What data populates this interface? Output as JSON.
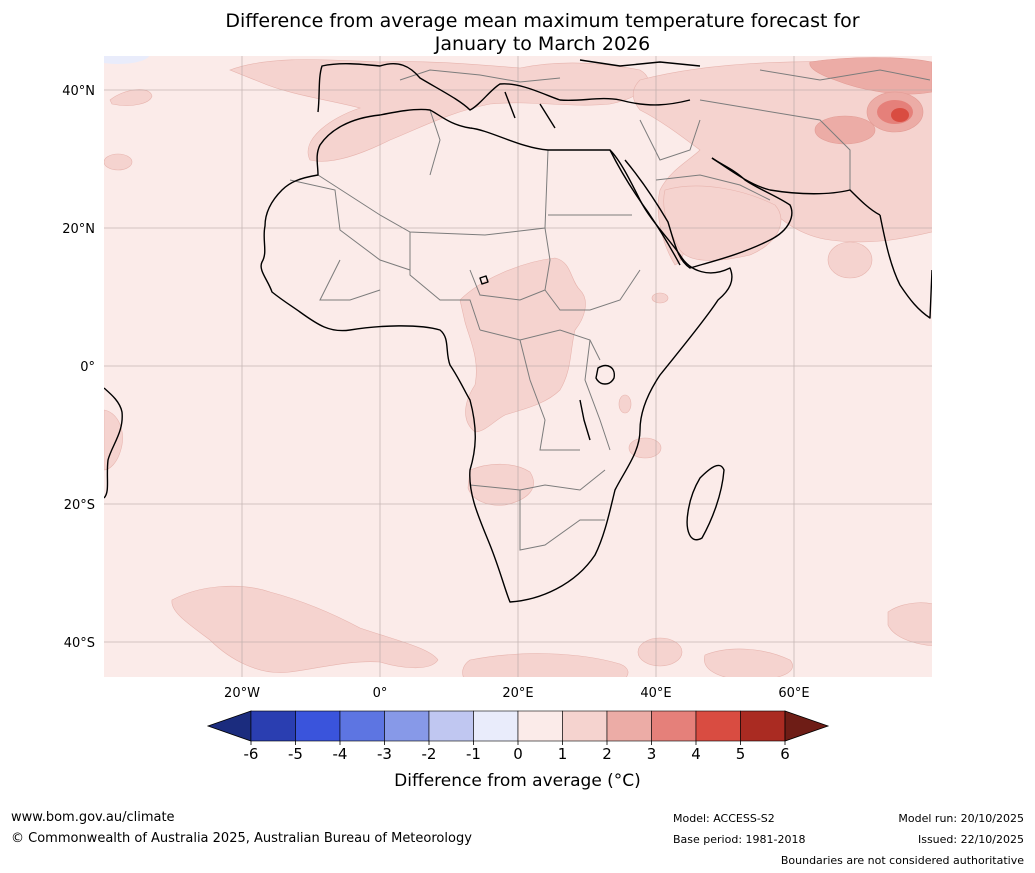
{
  "title": {
    "line1": "Difference from average mean maximum temperature forecast for",
    "line2": "January to March 2026"
  },
  "map": {
    "lat_labels": [
      "40°N",
      "20°N",
      "0°",
      "20°S",
      "40°S"
    ],
    "lon_labels": [
      "20°W",
      "0°",
      "20°E",
      "40°E",
      "60°E"
    ],
    "extent": {
      "lon": [
        -40,
        80
      ],
      "lat": [
        -45,
        45
      ]
    }
  },
  "legend": {
    "ticks": [
      "-6",
      "-5",
      "-4",
      "-3",
      "-2",
      "-1",
      "0",
      "1",
      "2",
      "3",
      "4",
      "5",
      "6"
    ],
    "colors": [
      "#1b2c7e",
      "#2a3eb1",
      "#3a54dc",
      "#5d75e2",
      "#8799e8",
      "#c0c7f1",
      "#e9ecfb",
      "#fbebe9",
      "#f5d3cf",
      "#ecaca6",
      "#e5807a",
      "#d94c41",
      "#aa2b22",
      "#6e1d16"
    ],
    "label": "Difference from average (°C)"
  },
  "colors": {
    "background_anomaly": "#fbebe9",
    "warm_anomaly": "#f5d3cf",
    "warmer_anomaly": "#ecaca6",
    "hot_anomaly": "#d94c41",
    "cool_anomaly": "#e9ecfb"
  },
  "footer": {
    "url": "www.bom.gov.au/climate",
    "copyright": "© Commonwealth of Australia 2025, Australian Bureau of Meteorology",
    "model": "Model: ACCESS-S2",
    "base_period": "Base period: 1981-2018",
    "model_run": "Model run: 20/10/2025",
    "issued": "Issued: 22/10/2025",
    "disclaimer": "Boundaries are not considered authoritative"
  }
}
